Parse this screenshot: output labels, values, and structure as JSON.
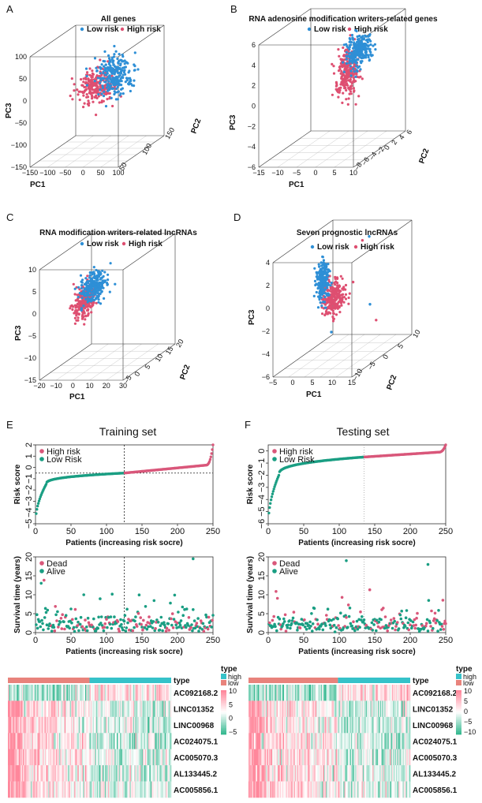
{
  "colors": {
    "low": "#2E8FD6",
    "high": "#DE4F71",
    "teal": "#1A9E83",
    "pink": "#D9577A",
    "high_bar": "#E8837C",
    "high_type": "#36C2C9"
  },
  "panels": {
    "A": {
      "label": "A",
      "title": "All genes",
      "legend": [
        "Low risk",
        "High risk"
      ],
      "axes": {
        "pc1": "PC1",
        "pc2": "PC2",
        "pc3": "PC3"
      },
      "x_ticks": [
        "−150",
        "−100",
        "−50",
        "0",
        "50",
        "100"
      ],
      "y_ticks": [
        "50",
        "100",
        "150"
      ],
      "z_ticks": [
        "100",
        "50",
        "0",
        "−50",
        "−100",
        "−150"
      ]
    },
    "B": {
      "label": "B",
      "title": "RNA adenosine modification writers-related genes",
      "legend": [
        "Low risk",
        "High risk"
      ],
      "axes": {
        "pc1": "PC1",
        "pc2": "PC2",
        "pc3": "PC3"
      },
      "x_ticks": [
        "−15",
        "−10",
        "−5",
        "0",
        "5",
        "10"
      ],
      "y_ticks": [
        "−8",
        "−6",
        "−4",
        "−2",
        "0",
        "2",
        "4",
        "6"
      ],
      "z_ticks": [
        "6",
        "4",
        "2",
        "0",
        "−2",
        "−4",
        "−6"
      ]
    },
    "C": {
      "label": "C",
      "title": "RNA modification writers-related lncRNAs",
      "legend": [
        "Low risk",
        "High risk"
      ],
      "axes": {
        "pc1": "PC1",
        "pc2": "PC2",
        "pc3": "PC3"
      },
      "x_ticks": [
        "−20",
        "−10",
        "0",
        "10",
        "20",
        "30"
      ],
      "y_ticks": [
        "−5",
        "0",
        "5",
        "10",
        "15",
        "20"
      ],
      "z_ticks": [
        "10",
        "5",
        "0",
        "−5",
        "−10",
        "−15"
      ]
    },
    "D": {
      "label": "D",
      "title": "Seven prognostic lncRNAs",
      "legend": [
        "Low risk",
        "High risk"
      ],
      "axes": {
        "pc1": "PC1",
        "pc2": "PC2",
        "pc3": "PC3"
      },
      "x_ticks": [
        "−5",
        "0",
        "5",
        "10",
        "15"
      ],
      "y_ticks": [
        "−10",
        "−5",
        "0",
        "5",
        "10"
      ],
      "z_ticks": [
        "4",
        "2",
        "0",
        "−2",
        "−4",
        "−6"
      ]
    },
    "E": {
      "label": "E",
      "title": "Training set"
    },
    "F": {
      "label": "F",
      "title": "Testing set"
    }
  },
  "chart_data": [
    {
      "panel": "A",
      "type": "scatter",
      "dimensions": 3,
      "title": "All genes",
      "series": [
        {
          "name": "Low risk",
          "center": [
            20,
            10,
            20
          ],
          "spread": [
            45,
            40,
            40
          ],
          "n": 250
        },
        {
          "name": "High risk",
          "center": [
            -20,
            -10,
            0
          ],
          "spread": [
            45,
            40,
            35
          ],
          "n": 250
        }
      ]
    },
    {
      "panel": "B",
      "type": "scatter",
      "dimensions": 3,
      "title": "RNA adenosine modification writers-related genes",
      "series": [
        {
          "name": "Low risk",
          "center": [
            2,
            1,
            3
          ],
          "spread": [
            2,
            2.5,
            1.5
          ],
          "n": 250
        },
        {
          "name": "High risk",
          "center": [
            0,
            0,
            1
          ],
          "spread": [
            2,
            2.5,
            2
          ],
          "n": 250
        }
      ]
    },
    {
      "panel": "C",
      "type": "scatter",
      "dimensions": 3,
      "title": "RNA modification writers-related lncRNAs",
      "series": [
        {
          "name": "Low risk",
          "center": [
            0,
            5,
            3
          ],
          "spread": [
            5,
            4,
            3
          ],
          "n": 250
        },
        {
          "name": "High risk",
          "center": [
            -3,
            3,
            0
          ],
          "spread": [
            4,
            3,
            3
          ],
          "n": 250
        }
      ]
    },
    {
      "panel": "D",
      "type": "scatter",
      "dimensions": 3,
      "title": "Seven prognostic lncRNAs",
      "series": [
        {
          "name": "Low risk",
          "center": [
            0,
            0,
            0.5
          ],
          "spread": [
            0.8,
            1.5,
            1.5
          ],
          "n": 250
        },
        {
          "name": "High risk",
          "center": [
            2,
            1,
            -1
          ],
          "spread": [
            2,
            2,
            1.5
          ],
          "n": 250
        }
      ]
    },
    {
      "panel": "E-top",
      "type": "scatter",
      "title": "Training set",
      "xlabel": "Patients (increasing risk socre)",
      "ylabel": "Risk score",
      "xlim": [
        0,
        250
      ],
      "ylim": [
        -5,
        2
      ],
      "x_ticks": [
        0,
        50,
        100,
        150,
        200,
        250
      ],
      "y_ticks": [
        -5,
        -4,
        -3,
        -2,
        -1,
        0,
        1,
        2
      ],
      "n": 250,
      "cutoff_index": 125,
      "cutoff_value": -0.5,
      "legend": [
        "High risk",
        "Low Risk"
      ],
      "curve": {
        "start": -5,
        "low_tail": -1.5,
        "mid": -0.5,
        "high_tail": 0.2,
        "max": 2
      }
    },
    {
      "panel": "E-bottom",
      "type": "scatter",
      "xlabel": "Patients (increasing risk socre)",
      "ylabel": "Survival time (years)",
      "xlim": [
        0,
        250
      ],
      "ylim": [
        0,
        20
      ],
      "x_ticks": [
        0,
        50,
        100,
        150,
        200,
        250
      ],
      "y_ticks": [
        0,
        5,
        10,
        15,
        20
      ],
      "n": 250,
      "cutoff_index": 125,
      "legend": [
        "Dead",
        "Alive"
      ],
      "max_value": 19.5
    },
    {
      "panel": "F-top",
      "type": "scatter",
      "title": "Testing set",
      "xlabel": "Patients (increasing risk socre)",
      "ylabel": "Risk score",
      "xlim": [
        0,
        250
      ],
      "ylim": [
        -6,
        0.5
      ],
      "x_ticks": [
        0,
        50,
        100,
        150,
        200,
        250
      ],
      "y_ticks": [
        -6,
        -5,
        -4,
        -3,
        -2,
        -1,
        0
      ],
      "n": 250,
      "cutoff_index": 135,
      "legend": [
        "High risk",
        "Low Risk"
      ],
      "curve": {
        "start": -6.2,
        "low_tail": -2,
        "mid": -0.5,
        "high_tail": -0.1,
        "max": 0.5
      }
    },
    {
      "panel": "F-bottom",
      "type": "scatter",
      "xlabel": "Patients (increasing risk socre)",
      "ylabel": "Survival time (years)",
      "xlim": [
        0,
        250
      ],
      "ylim": [
        0,
        20
      ],
      "x_ticks": [
        0,
        50,
        100,
        150,
        200,
        250
      ],
      "y_ticks": [
        0,
        5,
        10,
        15,
        20
      ],
      "n": 250,
      "cutoff_index": 135,
      "legend": [
        "Dead",
        "Alive"
      ],
      "max_value": 19
    },
    {
      "panel": "E-heatmap",
      "type": "heatmap",
      "rows": [
        "AC092168.2",
        "LINC01352",
        "LINC00968",
        "AC024075.1",
        "AC005070.3",
        "AL133445.2",
        "AC005856.1"
      ],
      "annotation_label": "type",
      "annotation_levels": [
        "high",
        "low"
      ],
      "low_fraction": 0.5,
      "color_scale": [
        -5,
        10
      ],
      "scale_ticks": [
        "10",
        "5",
        "0",
        "−5"
      ]
    },
    {
      "panel": "F-heatmap",
      "type": "heatmap",
      "rows": [
        "AC092168.2",
        "LINC01352",
        "LINC00968",
        "AC024075.1",
        "AC005070.3",
        "AL133445.2",
        "AC005856.1"
      ],
      "annotation_label": "type",
      "annotation_levels": [
        "high",
        "low"
      ],
      "low_fraction": 0.55,
      "color_scale": [
        -10,
        10
      ],
      "scale_ticks": [
        "10",
        "5",
        "0",
        "−5",
        "−10"
      ]
    }
  ]
}
